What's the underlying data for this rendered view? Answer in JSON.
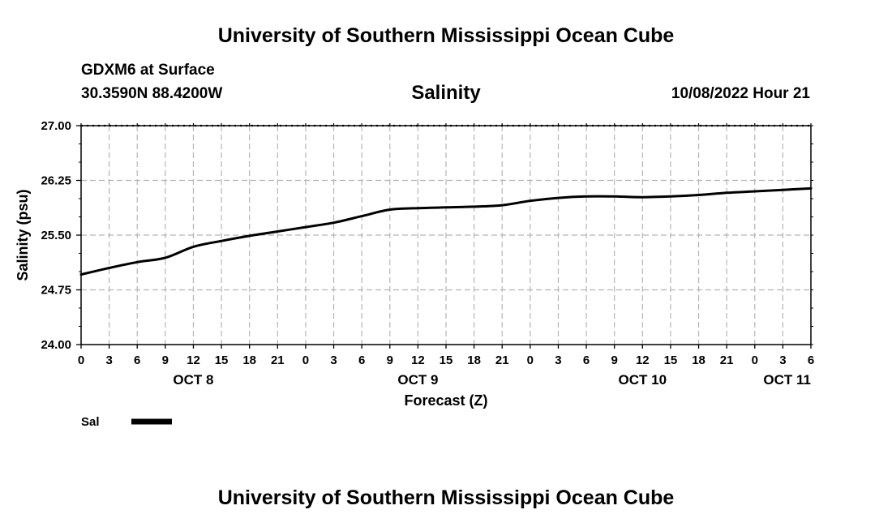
{
  "header": {
    "title": "University of Southern Mississippi Ocean Cube",
    "station": "GDXM6 at Surface",
    "coords": "30.3590N  88.4200W",
    "variable": "Salinity",
    "datetime": "10/08/2022 Hour 21"
  },
  "footer": {
    "title": "University of Southern Mississippi Ocean Cube"
  },
  "chart_data": {
    "type": "line",
    "title": "Salinity",
    "xlabel": "Forecast (Z)",
    "ylabel": "Salinity (psu)",
    "ylim": [
      24.0,
      27.0
    ],
    "yticks": [
      "24.00",
      "24.75",
      "25.50",
      "26.25",
      "27.00"
    ],
    "xlim": [
      0,
      78
    ],
    "x_tick_labels": [
      "0",
      "3",
      "6",
      "9",
      "12",
      "15",
      "18",
      "21",
      "0",
      "3",
      "6",
      "9",
      "12",
      "15",
      "18",
      "21",
      "0",
      "3",
      "6",
      "9",
      "12",
      "15",
      "18",
      "21",
      "0",
      "3",
      "6"
    ],
    "day_labels": [
      {
        "label": "OCT 8",
        "hour": 12
      },
      {
        "label": "OCT 9",
        "hour": 36
      },
      {
        "label": "OCT 10",
        "hour": 60
      },
      {
        "label": "OCT 11",
        "hour": 78
      }
    ],
    "grid": true,
    "legend": "bottom-left",
    "series": [
      {
        "name": "Sal",
        "color": "#000000",
        "x": [
          0,
          3,
          6,
          9,
          12,
          15,
          18,
          21,
          24,
          27,
          30,
          33,
          36,
          39,
          42,
          45,
          48,
          51,
          54,
          57,
          60,
          63,
          66,
          69,
          72,
          75,
          78
        ],
        "values": [
          24.96,
          25.05,
          25.13,
          25.19,
          25.34,
          25.42,
          25.49,
          25.55,
          25.61,
          25.67,
          25.76,
          25.85,
          25.87,
          25.88,
          25.89,
          25.91,
          25.97,
          26.01,
          26.03,
          26.03,
          26.02,
          26.03,
          26.05,
          26.08,
          26.1,
          26.12,
          26.14
        ]
      }
    ]
  }
}
